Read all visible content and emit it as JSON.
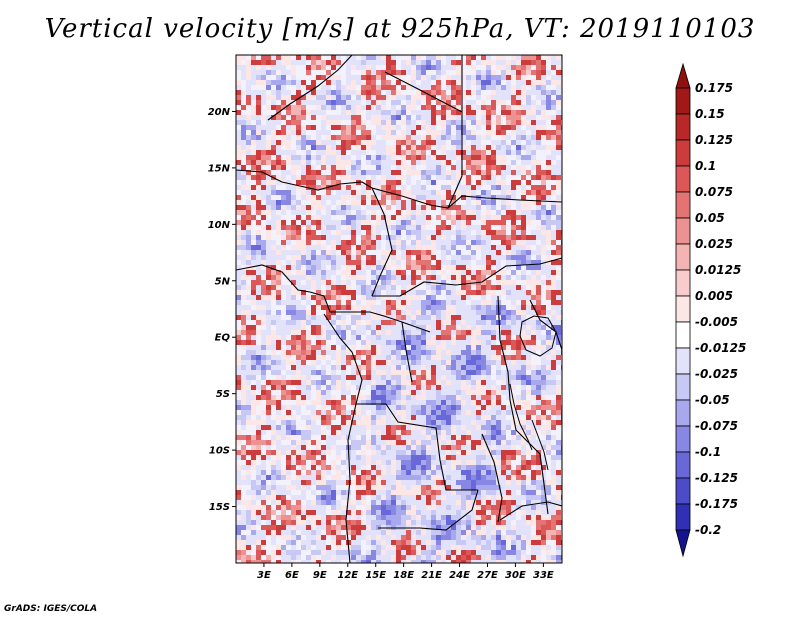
{
  "title": "Vertical velocity [m/s] at 925hPa, VT: 2019110103",
  "credit": "GrADS: IGES/COLA",
  "map": {
    "lon_range": [
      0,
      35
    ],
    "lat_range": [
      -20,
      25
    ],
    "lat_ticks": [
      {
        "value": 20,
        "label": "20N"
      },
      {
        "value": 15,
        "label": "15N"
      },
      {
        "value": 10,
        "label": "10N"
      },
      {
        "value": 5,
        "label": "5N"
      },
      {
        "value": 0,
        "label": "EQ"
      },
      {
        "value": -5,
        "label": "5S"
      },
      {
        "value": -10,
        "label": "10S"
      },
      {
        "value": -15,
        "label": "15S"
      }
    ],
    "lon_ticks": [
      {
        "value": 3,
        "label": "3E"
      },
      {
        "value": 6,
        "label": "6E"
      },
      {
        "value": 9,
        "label": "9E"
      },
      {
        "value": 12,
        "label": "12E"
      },
      {
        "value": 15,
        "label": "15E"
      },
      {
        "value": 18,
        "label": "18E"
      },
      {
        "value": 21,
        "label": "21E"
      },
      {
        "value": 24,
        "label": "24E"
      },
      {
        "value": 27,
        "label": "27E"
      },
      {
        "value": 30,
        "label": "30E"
      },
      {
        "value": 33,
        "label": "33E"
      }
    ]
  },
  "colorbar": {
    "levels": [
      {
        "label": "0.175",
        "color": "#a01818"
      },
      {
        "label": "0.15",
        "color": "#b82828"
      },
      {
        "label": "0.125",
        "color": "#cc3c3c"
      },
      {
        "label": "0.1",
        "color": "#dc5858"
      },
      {
        "label": "0.075",
        "color": "#e47474"
      },
      {
        "label": "0.05",
        "color": "#ec9292"
      },
      {
        "label": "0.025",
        "color": "#f4b4b4"
      },
      {
        "label": "0.0125",
        "color": "#f8cccc"
      },
      {
        "label": "0.005",
        "color": "#fce6e6"
      },
      {
        "label": "-0.005",
        "color": "#ffffff"
      },
      {
        "label": "-0.0125",
        "color": "#e2e2fa"
      },
      {
        "label": "-0.025",
        "color": "#c8c8f4"
      },
      {
        "label": "-0.05",
        "color": "#a8a8ee"
      },
      {
        "label": "-0.075",
        "color": "#8888e4"
      },
      {
        "label": "-0.1",
        "color": "#6868d8"
      },
      {
        "label": "-0.125",
        "color": "#4c4cc8"
      },
      {
        "label": "-0.175",
        "color": "#3030b4"
      },
      {
        "label": "-0.2",
        "color": "#2020a0"
      }
    ],
    "top_color": "#901010",
    "bottom_color": "#14148c"
  }
}
